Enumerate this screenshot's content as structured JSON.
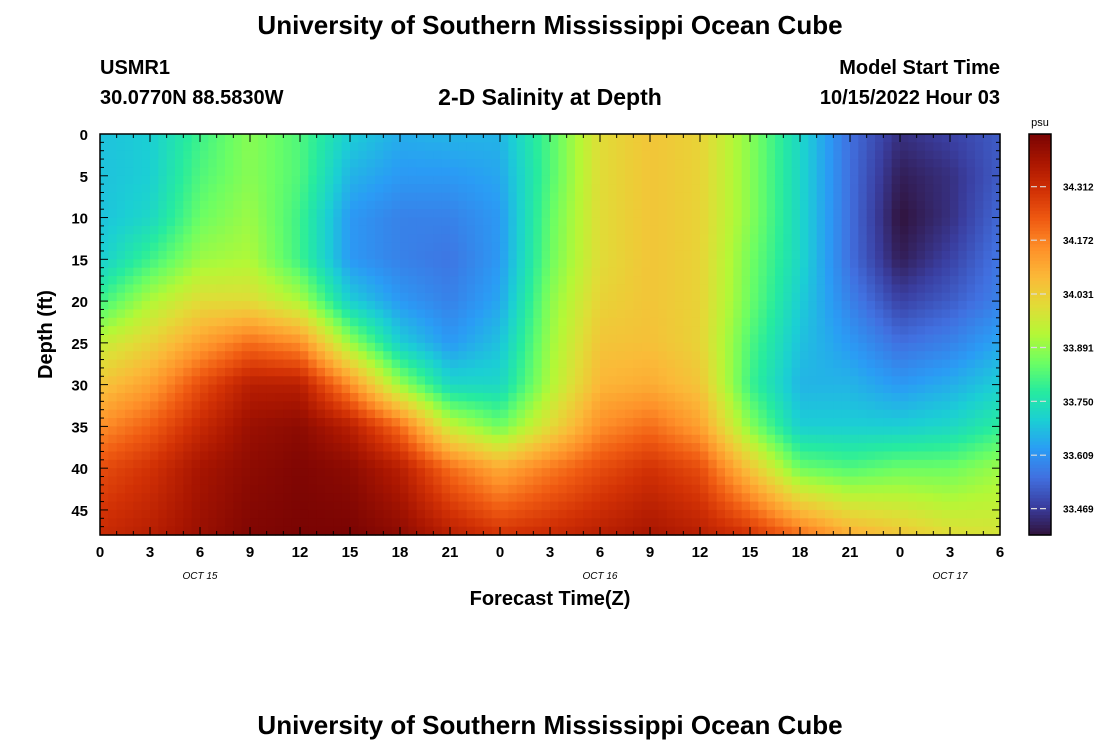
{
  "page": {
    "title_top": "University of Southern Mississippi Ocean Cube",
    "title_bottom": "University of Southern Mississippi Ocean Cube",
    "station_id": "USMR1",
    "station_coords": "30.0770N  88.5830W",
    "model_start_label": "Model Start Time",
    "model_start_value": "10/15/2022 Hour 03"
  },
  "chart_data": {
    "type": "heatmap",
    "title": "2-D Salinity at Depth",
    "xlabel": "Forecast Time(Z)",
    "ylabel": "Depth (ft)",
    "x_tick_labels": [
      "0",
      "3",
      "6",
      "9",
      "12",
      "15",
      "18",
      "21",
      "0",
      "3",
      "6",
      "9",
      "12",
      "15",
      "18",
      "21",
      "0",
      "3",
      "6"
    ],
    "x_range_hours": [
      0,
      54
    ],
    "date_labels": [
      {
        "text": "OCT 15",
        "hour": 6
      },
      {
        "text": "OCT 16",
        "hour": 30
      },
      {
        "text": "OCT 17",
        "hour": 51
      }
    ],
    "y_tick_labels": [
      "0",
      "5",
      "10",
      "15",
      "20",
      "25",
      "30",
      "35",
      "40",
      "45"
    ],
    "y_range_ft": [
      0,
      48
    ],
    "colorbar": {
      "unit": "psu",
      "ticks": [
        "34.312",
        "34.172",
        "34.031",
        "33.891",
        "33.750",
        "33.609",
        "33.469"
      ],
      "range": [
        33.4,
        34.45
      ]
    },
    "colormap": [
      "#30123b",
      "#3a3ea0",
      "#4170e0",
      "#2a9cf5",
      "#1bcfd4",
      "#26eb9f",
      "#6bfe64",
      "#b4f836",
      "#e1dc37",
      "#fbb938",
      "#fe9029",
      "#f05b12",
      "#d23105",
      "#aa1601",
      "#7a0403"
    ],
    "profiles": [
      {
        "hour": 0,
        "values": [
          33.68,
          33.68,
          33.68,
          33.7,
          33.8,
          33.95,
          34.05,
          34.15,
          34.25,
          34.32
        ]
      },
      {
        "hour": 3,
        "values": [
          33.7,
          33.7,
          33.72,
          33.8,
          33.92,
          34.02,
          34.12,
          34.22,
          34.3,
          34.35
        ]
      },
      {
        "hour": 6,
        "values": [
          33.8,
          33.82,
          33.85,
          33.9,
          34.0,
          34.12,
          34.25,
          34.32,
          34.38,
          34.4
        ]
      },
      {
        "hour": 9,
        "values": [
          33.88,
          33.88,
          33.9,
          33.92,
          34.0,
          34.2,
          34.35,
          34.4,
          34.42,
          34.44
        ]
      },
      {
        "hour": 12,
        "values": [
          33.82,
          33.82,
          33.8,
          33.8,
          33.92,
          34.15,
          34.35,
          34.42,
          34.44,
          34.45
        ]
      },
      {
        "hour": 15,
        "values": [
          33.7,
          33.66,
          33.62,
          33.62,
          33.7,
          33.9,
          34.15,
          34.35,
          34.42,
          34.45
        ]
      },
      {
        "hour": 18,
        "values": [
          33.65,
          33.62,
          33.58,
          33.58,
          33.62,
          33.7,
          33.9,
          34.2,
          34.35,
          34.42
        ]
      },
      {
        "hour": 21,
        "values": [
          33.66,
          33.62,
          33.58,
          33.56,
          33.58,
          33.62,
          33.72,
          33.95,
          34.2,
          34.35
        ]
      },
      {
        "hour": 24,
        "values": [
          33.66,
          33.64,
          33.62,
          33.62,
          33.64,
          33.68,
          33.72,
          33.85,
          34.1,
          34.3
        ]
      },
      {
        "hour": 27,
        "values": [
          33.82,
          33.82,
          33.84,
          33.85,
          33.88,
          33.9,
          33.92,
          34.0,
          34.18,
          34.32
        ]
      },
      {
        "hour": 30,
        "values": [
          34.0,
          34.0,
          34.0,
          34.0,
          34.02,
          34.05,
          34.08,
          34.15,
          34.25,
          34.35
        ]
      },
      {
        "hour": 33,
        "values": [
          34.05,
          34.05,
          34.05,
          34.05,
          34.05,
          34.06,
          34.1,
          34.2,
          34.3,
          34.38
        ]
      },
      {
        "hour": 36,
        "values": [
          34.02,
          34.02,
          34.02,
          34.02,
          34.02,
          34.02,
          34.05,
          34.12,
          34.25,
          34.35
        ]
      },
      {
        "hour": 39,
        "values": [
          33.88,
          33.88,
          33.88,
          33.86,
          33.85,
          33.82,
          33.8,
          33.88,
          34.05,
          34.3
        ]
      },
      {
        "hour": 42,
        "values": [
          33.72,
          33.72,
          33.72,
          33.72,
          33.7,
          33.68,
          33.66,
          33.7,
          33.85,
          34.2
        ]
      },
      {
        "hour": 45,
        "values": [
          33.55,
          33.55,
          33.55,
          33.55,
          33.58,
          33.62,
          33.66,
          33.7,
          33.82,
          34.1
        ]
      },
      {
        "hour": 48,
        "values": [
          33.45,
          33.42,
          33.4,
          33.42,
          33.48,
          33.55,
          33.62,
          33.7,
          33.85,
          34.05
        ]
      },
      {
        "hour": 51,
        "values": [
          33.48,
          33.45,
          33.45,
          33.48,
          33.52,
          33.58,
          33.65,
          33.72,
          33.85,
          34.0
        ]
      },
      {
        "hour": 54,
        "values": [
          33.52,
          33.52,
          33.54,
          33.56,
          33.58,
          33.64,
          33.7,
          33.78,
          33.9,
          33.98
        ]
      }
    ],
    "profile_depths_ft": [
      0,
      5,
      10,
      15,
      20,
      25,
      30,
      35,
      40,
      48
    ]
  }
}
